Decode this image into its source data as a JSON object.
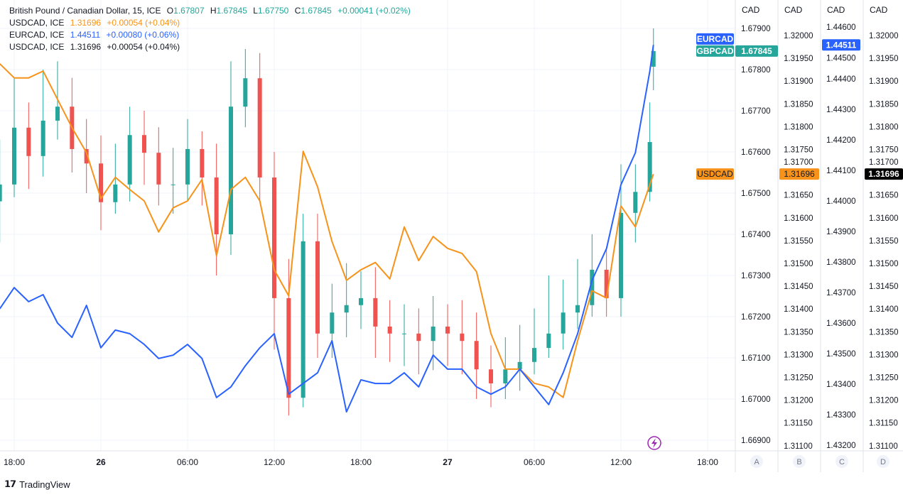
{
  "legend": {
    "main": {
      "name": "British Pound / Canadian Dollar, 15, ICE",
      "o_label": "O",
      "o": "1.67807",
      "h_label": "H",
      "h": "1.67845",
      "l_label": "L",
      "l": "1.67750",
      "c_label": "C",
      "c": "1.67845",
      "change": "+0.00041 (+0.02%)"
    },
    "rows": [
      {
        "name": "USDCAD, ICE",
        "value": "1.31696",
        "change": "+0.00054 (+0.04%)",
        "color": "#f7931a"
      },
      {
        "name": "EURCAD, ICE",
        "value": "1.44511",
        "change": "+0.00080 (+0.06%)",
        "color": "#2962ff"
      },
      {
        "name": "USDCAD, ICE",
        "value": "1.31696",
        "change": "+0.00054 (+0.04%)",
        "color": "#131722"
      }
    ]
  },
  "footer": {
    "brand": "TradingView"
  },
  "chart_data": {
    "type": "candlestick+line",
    "x_ticks": [
      "18:00",
      "26",
      "06:00",
      "12:00",
      "18:00",
      "27",
      "06:00",
      "12:00",
      "18:00"
    ],
    "axes": [
      {
        "id": "A",
        "unit": "CAD",
        "ticks": [
          "1.67900",
          "1.67800",
          "1.67700",
          "1.67600",
          "1.67500",
          "1.67400",
          "1.67300",
          "1.67200",
          "1.67100",
          "1.67000",
          "1.66900"
        ]
      },
      {
        "id": "B",
        "unit": "CAD",
        "ticks": [
          "1.32000",
          "1.31950",
          "1.31900",
          "1.31850",
          "1.31800",
          "1.31750",
          "1.31700",
          "1.31650",
          "1.31600",
          "1.31550",
          "1.31500",
          "1.31450",
          "1.31400",
          "1.31350",
          "1.31300",
          "1.31250",
          "1.31200",
          "1.31150",
          "1.31100"
        ]
      },
      {
        "id": "C",
        "unit": "CAD",
        "ticks": [
          "1.44600",
          "1.44500",
          "1.44400",
          "1.44300",
          "1.44200",
          "1.44100",
          "1.44000",
          "1.43900",
          "1.43800",
          "1.43700",
          "1.43600",
          "1.43500",
          "1.43400",
          "1.43300",
          "1.43200"
        ]
      },
      {
        "id": "D",
        "unit": "CAD",
        "ticks": [
          "1.32000",
          "1.31950",
          "1.31900",
          "1.31850",
          "1.31800",
          "1.31750",
          "1.31700",
          "1.31650",
          "1.31600",
          "1.31550",
          "1.31500",
          "1.31450",
          "1.31400",
          "1.31350",
          "1.31300",
          "1.31250",
          "1.31200",
          "1.31150",
          "1.31100"
        ]
      }
    ],
    "x": [
      "25 17:00",
      "25 18:00",
      "25 19:00",
      "25 20:00",
      "25 21:00",
      "25 22:00",
      "25 23:00",
      "26 00:00",
      "26 01:00",
      "26 02:00",
      "26 03:00",
      "26 04:00",
      "26 05:00",
      "26 06:00",
      "26 07:00",
      "26 08:00",
      "26 09:00",
      "26 10:00",
      "26 11:00",
      "26 12:00",
      "26 13:00",
      "26 14:00",
      "26 15:00",
      "26 16:00",
      "26 17:00",
      "26 18:00",
      "26 19:00",
      "26 20:00",
      "26 21:00",
      "26 22:00",
      "26 23:00",
      "27 00:00",
      "27 01:00",
      "27 02:00",
      "27 03:00",
      "27 04:00",
      "27 05:00",
      "27 06:00",
      "27 07:00",
      "27 08:00",
      "27 09:00",
      "27 10:00",
      "27 11:00",
      "27 12:00",
      "27 13:00",
      "27 14:00",
      "27 14:15"
    ],
    "series": [
      {
        "name": "GBPCAD",
        "kind": "candles",
        "axis": "A",
        "up_color": "#26a69a",
        "down_color": "#ef5350",
        "last": "1.67845",
        "open": [
          1.6748,
          1.67521,
          1.67659,
          1.6759,
          1.67676,
          1.6771,
          1.67607,
          1.67572,
          1.67478,
          1.67521,
          1.67641,
          1.67598,
          1.67521,
          1.67521,
          1.67607,
          1.67538,
          1.674,
          1.6771,
          1.67779,
          1.67538,
          1.67245,
          1.67003,
          1.67383,
          1.67159,
          1.6721,
          1.67228,
          1.67245,
          1.67176,
          1.67159,
          1.67159,
          1.67141,
          1.67176,
          1.67159,
          1.67141,
          1.67072,
          1.67038,
          1.67072,
          1.6709,
          1.67124,
          1.67159,
          1.6721,
          1.67228,
          1.67314,
          1.67245,
          1.67452,
          1.67503,
          1.67807
        ],
        "high": [
          1.6763,
          1.6778,
          1.6772,
          1.678,
          1.6782,
          1.6778,
          1.6768,
          1.6764,
          1.6762,
          1.6771,
          1.677,
          1.6766,
          1.6761,
          1.6768,
          1.6765,
          1.6762,
          1.6782,
          1.6785,
          1.6784,
          1.676,
          1.6734,
          1.6745,
          1.6745,
          1.6728,
          1.6733,
          1.6731,
          1.6732,
          1.6724,
          1.6723,
          1.6722,
          1.6725,
          1.6723,
          1.6724,
          1.6721,
          1.6713,
          1.6715,
          1.6718,
          1.6722,
          1.673,
          1.6729,
          1.6734,
          1.674,
          1.6737,
          1.6757,
          1.6757,
          1.6772,
          1.679
        ],
        "low": [
          1.6738,
          1.6749,
          1.6751,
          1.6754,
          1.6763,
          1.6755,
          1.675,
          1.6741,
          1.6745,
          1.6748,
          1.6752,
          1.6747,
          1.6745,
          1.6748,
          1.6747,
          1.673,
          1.6735,
          1.6766,
          1.6748,
          1.6712,
          1.6696,
          1.6698,
          1.671,
          1.671,
          1.6715,
          1.6717,
          1.671,
          1.6709,
          1.6708,
          1.6706,
          1.6707,
          1.6708,
          1.6706,
          1.67,
          1.6698,
          1.67,
          1.6702,
          1.6706,
          1.671,
          1.6712,
          1.6717,
          1.672,
          1.672,
          1.672,
          1.6738,
          1.6748,
          1.6775
        ],
        "close": [
          1.67521,
          1.67659,
          1.6759,
          1.67676,
          1.6771,
          1.67607,
          1.67572,
          1.67478,
          1.67521,
          1.67641,
          1.67598,
          1.67521,
          1.67521,
          1.67607,
          1.67538,
          1.674,
          1.6771,
          1.67779,
          1.67538,
          1.67245,
          1.67003,
          1.67383,
          1.67159,
          1.6721,
          1.67228,
          1.67245,
          1.67176,
          1.67159,
          1.67159,
          1.67141,
          1.67176,
          1.67159,
          1.67141,
          1.67072,
          1.67038,
          1.67072,
          1.6709,
          1.67124,
          1.67159,
          1.6721,
          1.67228,
          1.67314,
          1.67245,
          1.67452,
          1.67503,
          1.67624,
          1.67845
        ]
      },
      {
        "name": "USDCAD",
        "kind": "line",
        "axis": "B",
        "color": "#f7931a",
        "last": "1.31696",
        "values": [
          1.31938,
          1.31907,
          1.31907,
          1.31922,
          1.3186,
          1.31798,
          1.31743,
          1.31642,
          1.31689,
          1.31662,
          1.31637,
          1.31569,
          1.31622,
          1.31637,
          1.31684,
          1.31517,
          1.31662,
          1.31689,
          1.31637,
          1.31486,
          1.31429,
          1.31746,
          1.31668,
          1.31548,
          1.31463,
          1.31486,
          1.31502,
          1.31466,
          1.3158,
          1.31506,
          1.31559,
          1.31533,
          1.31522,
          1.31482,
          1.31346,
          1.31268,
          1.31268,
          1.31237,
          1.31229,
          1.31206,
          1.3133,
          1.3144,
          1.31424,
          1.31626,
          1.3158,
          1.31673,
          1.31696
        ]
      },
      {
        "name": "EURCAD",
        "kind": "line",
        "axis": "C",
        "color": "#2962ff",
        "last": "1.44511",
        "values": [
          1.43647,
          1.43716,
          1.4367,
          1.43693,
          1.436,
          1.43553,
          1.43658,
          1.43519,
          1.43577,
          1.43565,
          1.4353,
          1.43484,
          1.43495,
          1.4353,
          1.43484,
          1.43356,
          1.43391,
          1.4346,
          1.43519,
          1.43565,
          1.43367,
          1.43402,
          1.43437,
          1.43542,
          1.43309,
          1.43414,
          1.43402,
          1.43402,
          1.43437,
          1.43391,
          1.43495,
          1.43449,
          1.43449,
          1.43391,
          1.43367,
          1.43391,
          1.43449,
          1.43391,
          1.43333,
          1.43437,
          1.43565,
          1.4374,
          1.43844,
          1.44053,
          1.44158,
          1.44426,
          1.44511
        ]
      },
      {
        "name": "USDCAD",
        "kind": "price-scale",
        "axis": "D",
        "color": "#000000",
        "last": "1.31696"
      }
    ],
    "axis_letters": [
      "A",
      "B",
      "C",
      "D"
    ],
    "grid": true
  }
}
